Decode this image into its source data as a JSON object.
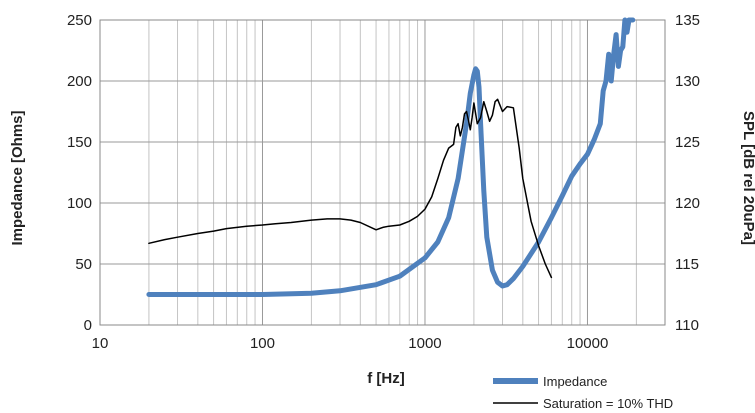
{
  "chart_data": {
    "type": "line",
    "title": "",
    "xlabel": "f [Hz]",
    "ylabel_left": "Impedance [Ohms]",
    "ylabel_right": "SPL [dB rel 20uPa]",
    "x_scale": "log",
    "xlim": [
      10,
      30000
    ],
    "x_ticks": [
      10,
      100,
      1000,
      10000
    ],
    "ylim_left": [
      0,
      250
    ],
    "y_ticks_left": [
      0,
      50,
      100,
      150,
      200,
      250
    ],
    "ylim_right": [
      110,
      135
    ],
    "y_ticks_right": [
      110,
      115,
      120,
      125,
      130,
      135
    ],
    "grid": true,
    "legend_position": "bottom-right",
    "series": [
      {
        "name": "Impedance",
        "axis": "left",
        "color": "#4F81BD",
        "x": [
          20,
          50,
          100,
          200,
          300,
          500,
          700,
          1000,
          1200,
          1400,
          1600,
          1800,
          1900,
          2000,
          2050,
          2100,
          2150,
          2200,
          2300,
          2400,
          2600,
          2800,
          3000,
          3200,
          3500,
          4000,
          5000,
          6000,
          7000,
          8000,
          9000,
          10000,
          11000,
          12000,
          12500,
          13000,
          13500,
          14000,
          14500,
          15000,
          15500,
          16000,
          16500,
          17000,
          17500,
          18000,
          19000
        ],
        "y": [
          25,
          25,
          25,
          26,
          28,
          33,
          40,
          55,
          68,
          88,
          120,
          165,
          190,
          205,
          210,
          208,
          195,
          165,
          110,
          72,
          45,
          35,
          32,
          33,
          38,
          48,
          68,
          88,
          106,
          122,
          132,
          140,
          152,
          165,
          192,
          200,
          222,
          200,
          222,
          238,
          212,
          225,
          228,
          250,
          240,
          250,
          250
        ]
      },
      {
        "name": "Saturation = 10% THD",
        "axis": "right",
        "color": "#000000",
        "x": [
          20,
          25,
          30,
          40,
          50,
          60,
          80,
          100,
          120,
          150,
          200,
          250,
          300,
          350,
          400,
          500,
          550,
          600,
          700,
          800,
          900,
          1000,
          1100,
          1200,
          1300,
          1400,
          1500,
          1550,
          1600,
          1650,
          1700,
          1750,
          1800,
          1850,
          1900,
          1950,
          2000,
          2100,
          2200,
          2300,
          2400,
          2500,
          2600,
          2700,
          2800,
          3000,
          3200,
          3500,
          3800,
          4000,
          4500,
          5000,
          5500,
          6000
        ],
        "y": [
          116.7,
          117,
          117.2,
          117.5,
          117.7,
          117.9,
          118.1,
          118.2,
          118.3,
          118.4,
          118.6,
          118.7,
          118.7,
          118.6,
          118.4,
          117.8,
          118,
          118.1,
          118.2,
          118.5,
          118.9,
          119.5,
          120.5,
          122,
          123.5,
          124.5,
          124.8,
          126.2,
          126.5,
          125.5,
          126.2,
          127.3,
          127.5,
          126.8,
          126,
          127,
          128.2,
          126.5,
          127,
          128.3,
          127.5,
          126.7,
          127.2,
          128.3,
          128.5,
          127.5,
          127.9,
          127.8,
          124.5,
          122,
          118.5,
          116.5,
          115,
          113.9
        ]
      }
    ]
  }
}
